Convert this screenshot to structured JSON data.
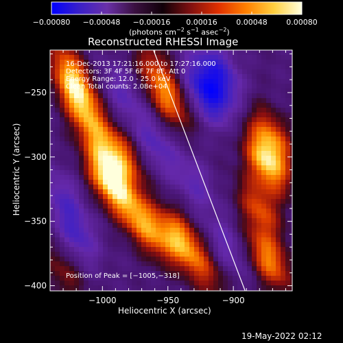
{
  "chart_data": {
    "type": "heatmap",
    "title": "Reconstructed RHESSI Image",
    "xlabel": "Heliocentric X (arcsec)",
    "ylabel": "Heliocentric Y (arcsec)",
    "xlim": [
      -1040,
      -855
    ],
    "ylim": [
      -404,
      -217
    ],
    "x_ticks": [
      -1000,
      -950,
      -900
    ],
    "x_tick_labels": [
      "−1000",
      "−950",
      "−900"
    ],
    "y_ticks": [
      -250,
      -300,
      -350,
      -400
    ],
    "y_tick_labels": [
      "−250",
      "−300",
      "−350",
      "−400"
    ],
    "colorbar": {
      "range": [
        -0.0008,
        0.0008
      ],
      "ticks": [
        -0.0008,
        -0.00048,
        -0.00016,
        0.00016,
        0.00048,
        0.0008
      ],
      "tick_labels": [
        "−0.00080",
        "−0.00048",
        "−0.00016",
        "0.00016",
        "0.00048",
        "0.00080"
      ],
      "unit_main": "(photons cm",
      "unit_sup1": "−2",
      "unit_mid1": " s",
      "unit_sup2": "−1",
      "unit_mid2": " asec",
      "unit_sup3": "−2",
      "unit_end": ")",
      "colors": [
        "#0000ff",
        "#3a20c8",
        "#6a30a8",
        "#3a1040",
        "#100008",
        "#801010",
        "#e03000",
        "#ff8000",
        "#ffd040",
        "#ffffe0"
      ]
    },
    "limb_line": {
      "x": [
        -961,
        -891
      ],
      "y": [
        -217,
        -404
      ]
    },
    "blobs": [
      {
        "x": -1018,
        "y": -255,
        "v": 0.75
      },
      {
        "x": -1025,
        "y": -232,
        "v": 0.55
      },
      {
        "x": -995,
        "y": -318,
        "v": 0.95
      },
      {
        "x": -985,
        "y": -300,
        "v": 0.6
      },
      {
        "x": -1005,
        "y": -285,
        "v": 0.45
      },
      {
        "x": -975,
        "y": -345,
        "v": 0.5
      },
      {
        "x": -960,
        "y": -360,
        "v": 0.45
      },
      {
        "x": -940,
        "y": -365,
        "v": 0.75
      },
      {
        "x": -950,
        "y": -255,
        "v": 0.6
      },
      {
        "x": -960,
        "y": -230,
        "v": 0.35
      },
      {
        "x": -875,
        "y": -305,
        "v": 0.85
      },
      {
        "x": -870,
        "y": -285,
        "v": 0.6
      },
      {
        "x": -880,
        "y": -340,
        "v": 0.55
      },
      {
        "x": -873,
        "y": -380,
        "v": 0.7
      },
      {
        "x": -920,
        "y": -390,
        "v": 0.35
      },
      {
        "x": -1030,
        "y": -390,
        "v": 0.3
      },
      {
        "x": -920,
        "y": -250,
        "v": -0.75
      },
      {
        "x": -910,
        "y": -235,
        "v": -0.55
      },
      {
        "x": -960,
        "y": -290,
        "v": -0.35
      },
      {
        "x": -1020,
        "y": -360,
        "v": -0.4
      },
      {
        "x": -1030,
        "y": -330,
        "v": -0.3
      },
      {
        "x": -905,
        "y": -370,
        "v": -0.3
      },
      {
        "x": -930,
        "y": -320,
        "v": -0.3
      },
      {
        "x": -985,
        "y": -250,
        "v": -0.3
      }
    ]
  },
  "info": {
    "line1": "16-Dec-2013 17:21:16.000 to 17:27:16.000",
    "line2": "Detectors: 3F 4F 5F 6F 7F 8F, Att 0",
    "line3": "Energy Range: 12.0 - 25.0 keV",
    "line4": "Clean    Total counts: 2.08e+04",
    "peak": "Position of Peak = [−1005,−318]"
  },
  "footer": {
    "timestamp": "19-May-2022 02:12"
  }
}
